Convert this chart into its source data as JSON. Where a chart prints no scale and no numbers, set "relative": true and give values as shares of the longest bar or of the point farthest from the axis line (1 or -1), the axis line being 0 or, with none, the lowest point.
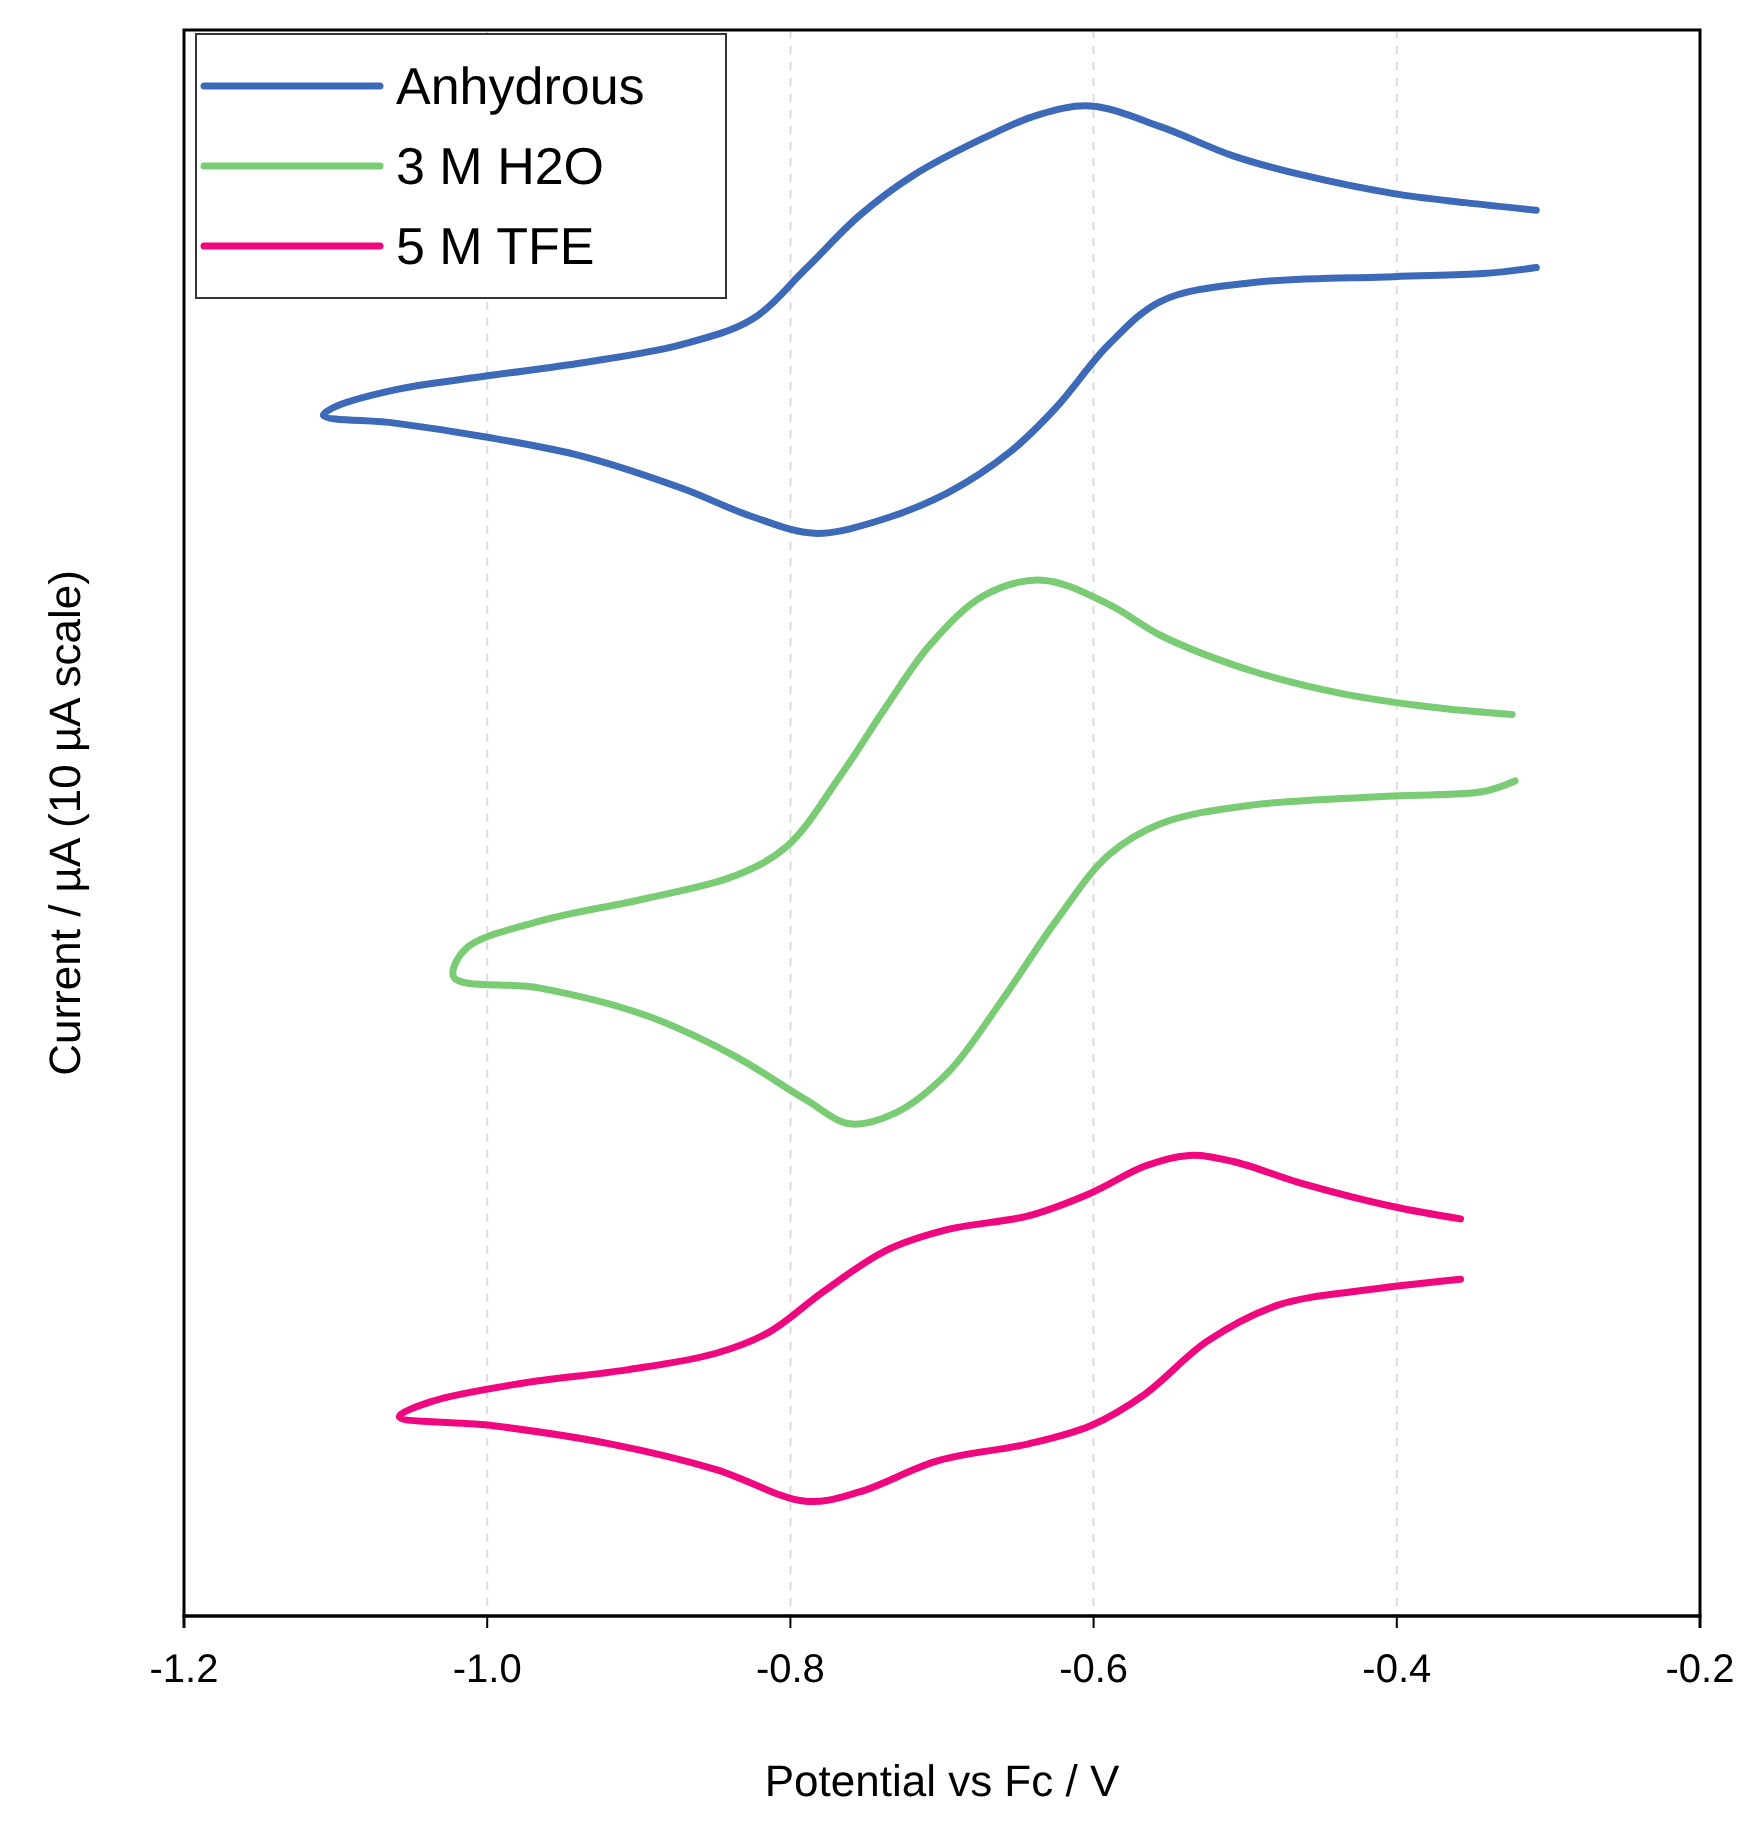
{
  "chart_data": {
    "type": "line",
    "relative": true,
    "xlabel": "Potential vs Fc / V",
    "ylabel": "Current / µA (10 µA scale)",
    "xlim": [
      -1.2,
      -0.2
    ],
    "xticks": [
      -1.2,
      {
        "value": -1.0,
        "label": "-1.0"
      },
      -0.8,
      -0.6,
      -0.4,
      -0.2
    ],
    "grid": "x",
    "legend": "top left",
    "marker": "none",
    "line_style": "solid",
    "series": [
      {
        "name": "Anhydrous",
        "color": "#3d6ab8",
        "x": [
          -0.308,
          -0.355,
          -0.402,
          -0.461,
          -0.508,
          -0.555,
          -0.602,
          -0.637,
          -0.672,
          -0.719,
          -0.755,
          -0.79,
          -0.825,
          -0.872,
          -0.937,
          -1.002,
          -1.061,
          -1.102,
          -1.108,
          -1.061,
          -1.002,
          -0.937,
          -0.872,
          -0.825,
          -0.784,
          -0.743,
          -0.696,
          -0.655,
          -0.625,
          -0.59,
          -0.555,
          -0.496,
          -0.402,
          -0.343,
          -0.308
        ],
        "values": [
          0.931,
          0.936,
          0.942,
          0.954,
          0.967,
          0.986,
          1.0,
          0.994,
          0.979,
          0.954,
          0.927,
          0.892,
          0.859,
          0.842,
          0.83,
          0.821,
          0.812,
          0.8,
          0.795,
          0.79,
          0.781,
          0.768,
          0.747,
          0.728,
          0.717,
          0.725,
          0.744,
          0.771,
          0.8,
          0.842,
          0.871,
          0.883,
          0.887,
          0.889,
          0.893
        ]
      },
      {
        "name": "3 M H2O",
        "color": "#7acc74",
        "x": [
          -0.324,
          -0.378,
          -0.437,
          -0.496,
          -0.555,
          -0.59,
          -0.634,
          -0.672,
          -0.708,
          -0.737,
          -0.766,
          -0.802,
          -0.837,
          -0.896,
          -0.966,
          -1.014,
          -1.022,
          -0.966,
          -0.896,
          -0.837,
          -0.79,
          -0.761,
          -0.731,
          -0.696,
          -0.661,
          -0.625,
          -0.59,
          -0.555,
          -0.496,
          -0.402,
          -0.343,
          -0.322
        ],
        "values": [
          0.597,
          0.602,
          0.611,
          0.626,
          0.649,
          0.67,
          0.686,
          0.676,
          0.643,
          0.602,
          0.558,
          0.51,
          0.49,
          0.475,
          0.46,
          0.442,
          0.423,
          0.416,
          0.398,
          0.371,
          0.342,
          0.326,
          0.333,
          0.36,
          0.407,
          0.46,
          0.504,
          0.525,
          0.537,
          0.543,
          0.546,
          0.553
        ]
      },
      {
        "name": "5 M TFE",
        "color": "#f0077f",
        "x": [
          -0.358,
          -0.402,
          -0.461,
          -0.508,
          -0.537,
          -0.566,
          -0.602,
          -0.643,
          -0.696,
          -0.737,
          -0.778,
          -0.814,
          -0.849,
          -0.908,
          -0.978,
          -1.037,
          -1.058,
          -0.996,
          -0.919,
          -0.849,
          -0.79,
          -0.755,
          -0.702,
          -0.643,
          -0.602,
          -0.566,
          -0.525,
          -0.478,
          -0.419,
          -0.358
        ],
        "values": [
          0.263,
          0.271,
          0.286,
          0.301,
          0.305,
          0.298,
          0.28,
          0.265,
          0.256,
          0.242,
          0.215,
          0.188,
          0.174,
          0.163,
          0.154,
          0.142,
          0.132,
          0.126,
          0.114,
          0.097,
          0.076,
          0.082,
          0.103,
          0.114,
          0.126,
          0.147,
          0.182,
          0.206,
          0.216,
          0.223
        ]
      }
    ]
  }
}
